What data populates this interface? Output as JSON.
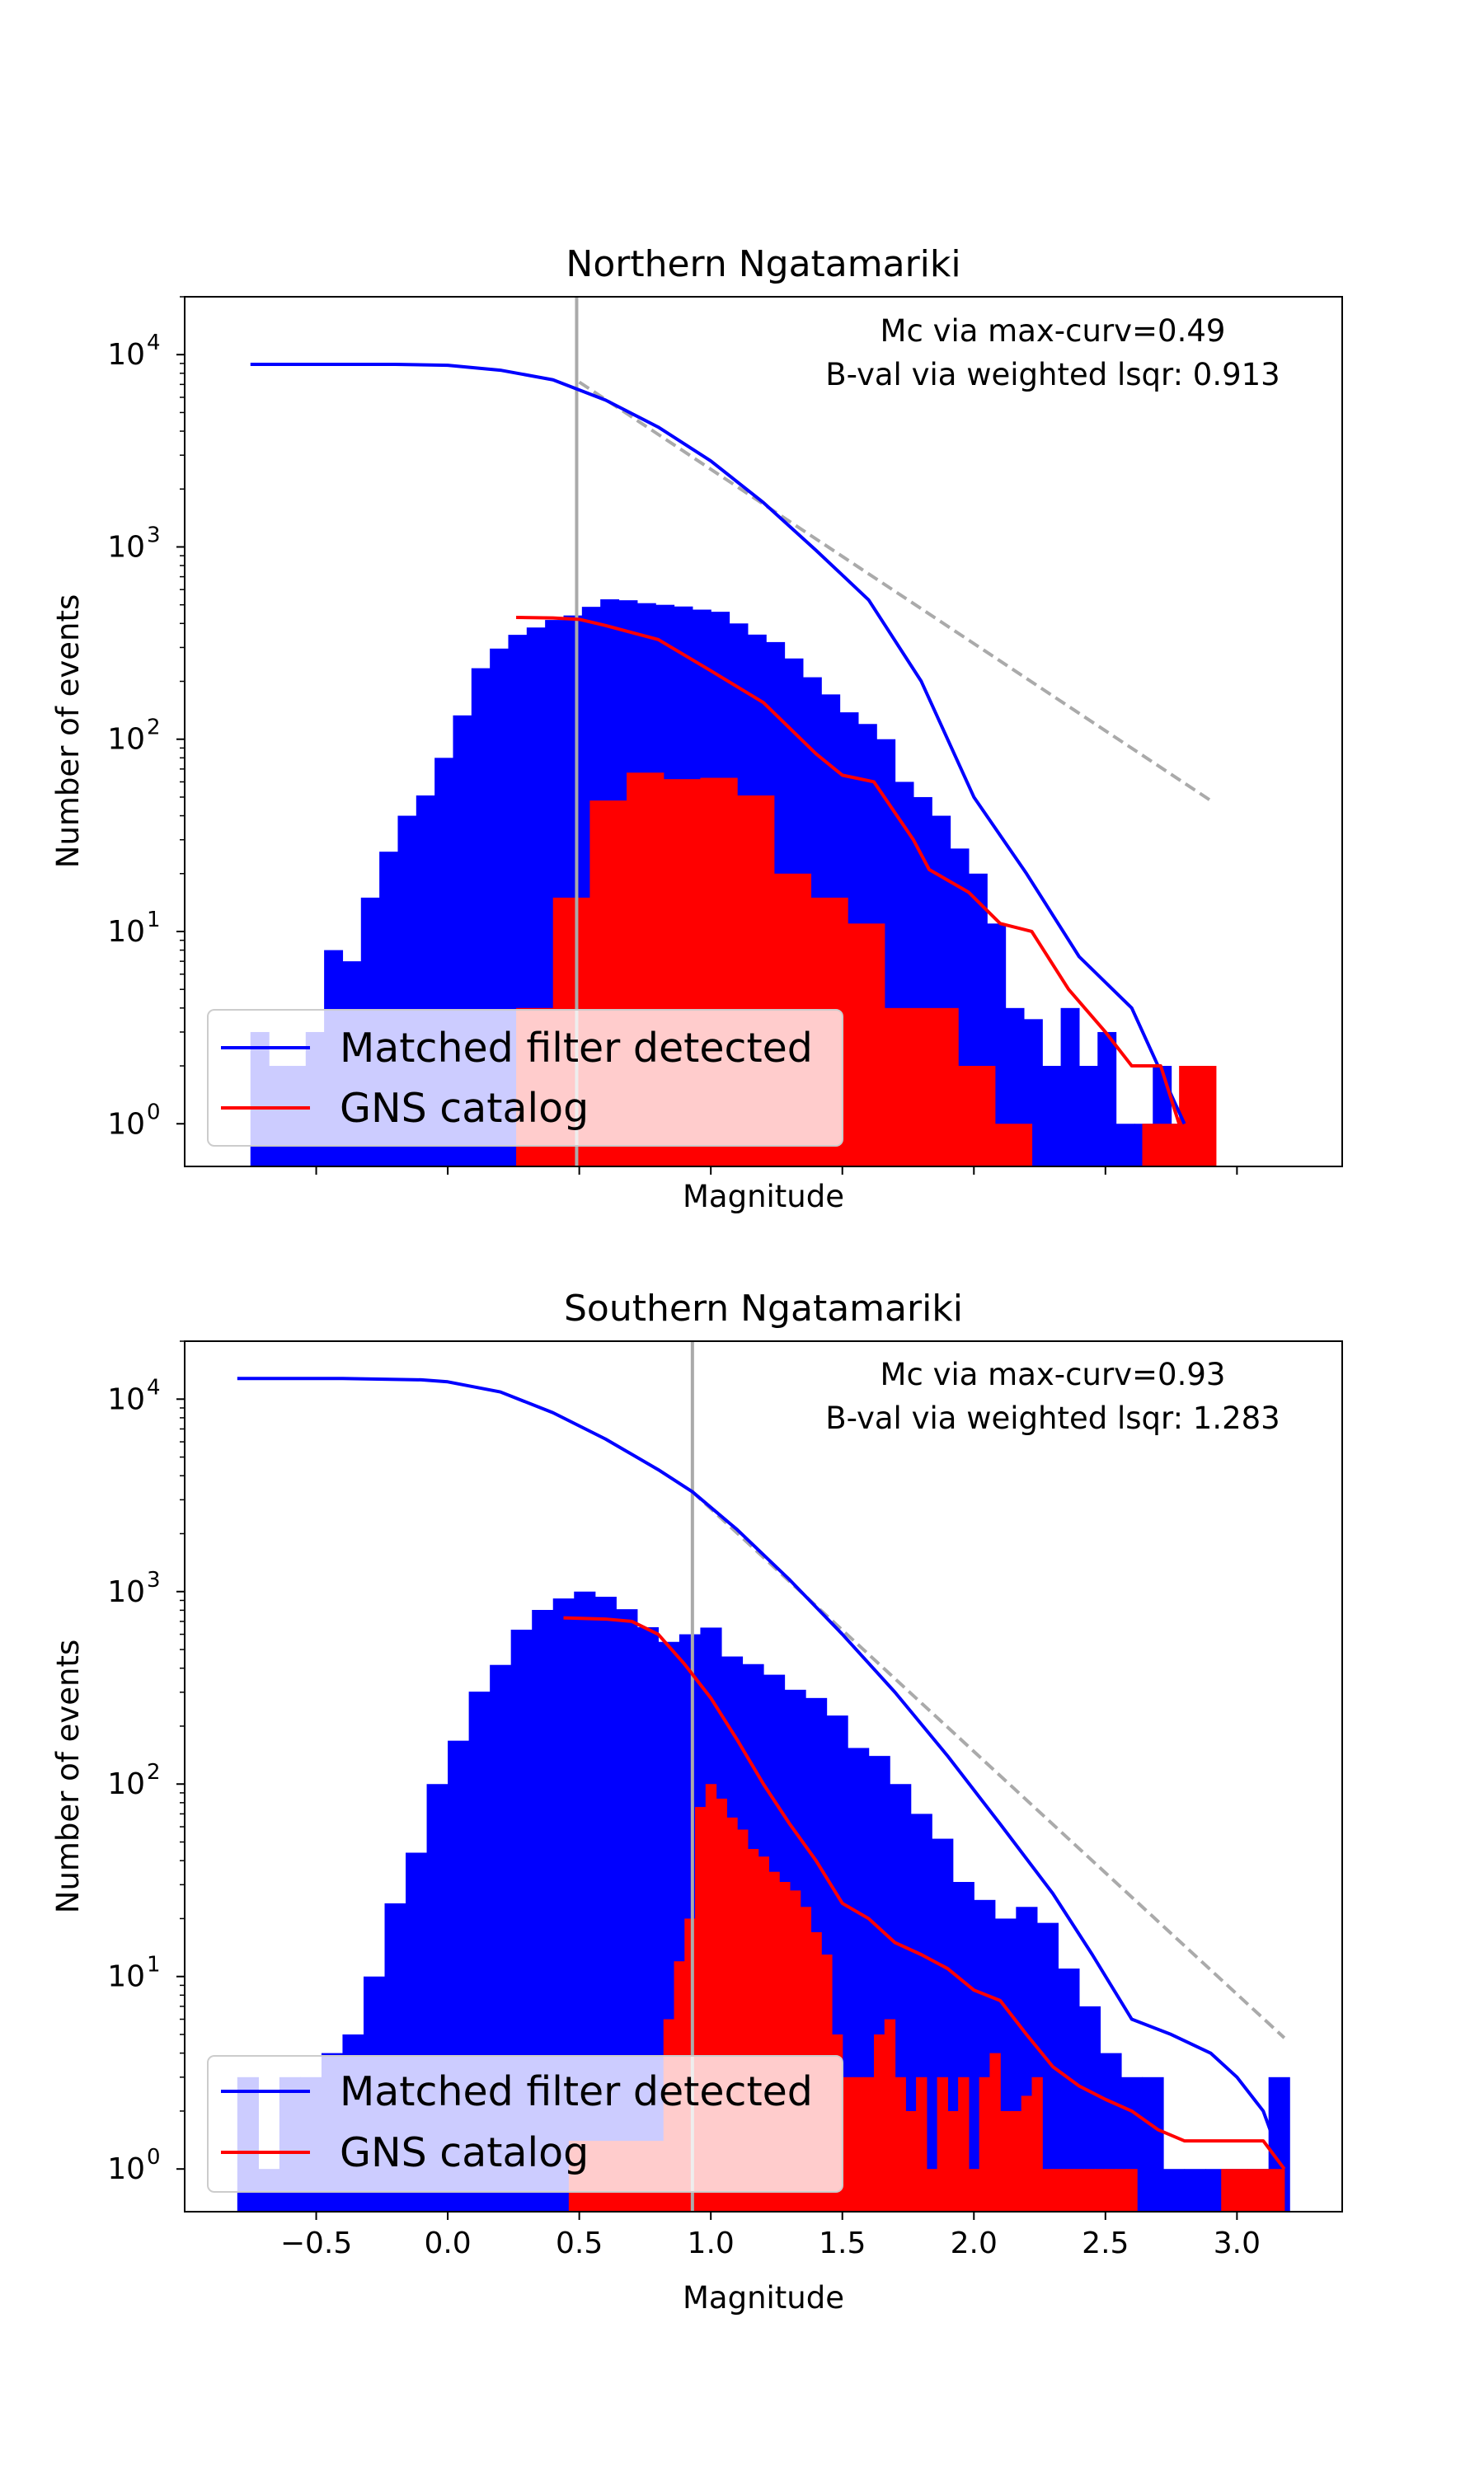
{
  "chart_data": [
    {
      "type": "bar",
      "title": "Northern Ngatamariki",
      "xlabel": "Magnitude",
      "ylabel": "Number of events",
      "yscale": "log",
      "xlim": [
        -1.0,
        3.4
      ],
      "ylim": [
        0.6,
        20000
      ],
      "x_tick_labels_visible": false,
      "y_ticks": [
        {
          "value": 1,
          "base": "10",
          "exp": "0"
        },
        {
          "value": 10,
          "base": "10",
          "exp": "1"
        },
        {
          "value": 100,
          "base": "10",
          "exp": "2"
        },
        {
          "value": 1000,
          "base": "10",
          "exp": "3"
        },
        {
          "value": 10000,
          "base": "10",
          "exp": "4"
        }
      ],
      "annotations": [
        "Mc via max-curv=0.49",
        "B-val via weighted lsqr: 0.913"
      ],
      "mc": 0.49,
      "fit_line": {
        "x": [
          0.5,
          2.9
        ],
        "y": [
          7200,
          48
        ]
      },
      "hist_series": [
        {
          "name": "Matched filter detected",
          "color": "#0000ff",
          "bin_width": 0.07,
          "bins": [
            [
              -0.75,
              3
            ],
            [
              -0.68,
              2
            ],
            [
              -0.61,
              2
            ],
            [
              -0.54,
              3
            ],
            [
              -0.47,
              8
            ],
            [
              -0.4,
              7
            ],
            [
              -0.33,
              15
            ],
            [
              -0.26,
              26
            ],
            [
              -0.19,
              40
            ],
            [
              -0.12,
              51
            ],
            [
              -0.05,
              80
            ],
            [
              0.02,
              133
            ],
            [
              0.09,
              234
            ],
            [
              0.16,
              296
            ],
            [
              0.23,
              349
            ],
            [
              0.3,
              381
            ],
            [
              0.37,
              417
            ],
            [
              0.44,
              440
            ],
            [
              0.51,
              488
            ],
            [
              0.58,
              534
            ],
            [
              0.65,
              528
            ],
            [
              0.72,
              510
            ],
            [
              0.79,
              500
            ],
            [
              0.86,
              490
            ],
            [
              0.93,
              472
            ],
            [
              1.0,
              460
            ],
            [
              1.07,
              400
            ],
            [
              1.14,
              350
            ],
            [
              1.21,
              320
            ],
            [
              1.28,
              263
            ],
            [
              1.35,
              210
            ],
            [
              1.42,
              171
            ],
            [
              1.49,
              138
            ],
            [
              1.56,
              120
            ],
            [
              1.63,
              100
            ],
            [
              1.7,
              60
            ],
            [
              1.77,
              50
            ],
            [
              1.84,
              40
            ],
            [
              1.91,
              27
            ],
            [
              1.98,
              20
            ],
            [
              2.05,
              11
            ],
            [
              2.12,
              4
            ],
            [
              2.19,
              3.5
            ],
            [
              2.26,
              2
            ],
            [
              2.33,
              4
            ],
            [
              2.4,
              2
            ],
            [
              2.47,
              3
            ],
            [
              2.54,
              1
            ],
            [
              2.61,
              1
            ],
            [
              2.68,
              2
            ],
            [
              2.75,
              1
            ],
            [
              2.82,
              2
            ]
          ]
        },
        {
          "name": "GNS catalog",
          "color": "#ff0000",
          "bin_width": 0.14,
          "bins": [
            [
              0.26,
              4
            ],
            [
              0.4,
              15
            ],
            [
              0.54,
              48
            ],
            [
              0.68,
              67
            ],
            [
              0.82,
              62
            ],
            [
              0.96,
              63
            ],
            [
              1.1,
              51
            ],
            [
              1.24,
              20
            ],
            [
              1.38,
              15
            ],
            [
              1.52,
              11
            ],
            [
              1.66,
              4
            ],
            [
              1.8,
              4
            ],
            [
              1.94,
              2
            ],
            [
              2.08,
              1
            ],
            [
              2.22,
              0
            ],
            [
              2.36,
              0
            ],
            [
              2.5,
              0
            ],
            [
              2.64,
              1
            ],
            [
              2.78,
              2
            ]
          ]
        }
      ],
      "cumulative_series": [
        {
          "name": "Matched filter detected",
          "color": "#0000ff",
          "x": [
            -0.75,
            -0.5,
            -0.2,
            0.0,
            0.2,
            0.4,
            0.6,
            0.8,
            1.0,
            1.2,
            1.4,
            1.6,
            1.8,
            2.0,
            2.2,
            2.4,
            2.6,
            2.8
          ],
          "y": [
            8900,
            8900,
            8900,
            8800,
            8300,
            7400,
            5800,
            4200,
            2800,
            1700,
            960,
            530,
            200,
            50,
            20,
            7.4,
            4,
            1
          ]
        },
        {
          "name": "GNS catalog",
          "color": "#ff0000",
          "x": [
            0.26,
            0.4,
            0.5,
            0.6,
            0.8,
            1.0,
            1.2,
            1.4,
            1.5,
            1.62,
            1.77,
            1.83,
            1.98,
            2.1,
            2.22,
            2.36,
            2.5,
            2.6,
            2.71,
            2.78
          ],
          "y": [
            430,
            427,
            420,
            390,
            330,
            227,
            155,
            84,
            65,
            60,
            30,
            21,
            16,
            11,
            10,
            5,
            3,
            2,
            2,
            1
          ]
        }
      ]
    },
    {
      "type": "bar",
      "title": "Southern Ngatamariki",
      "xlabel": "Magnitude",
      "ylabel": "Number of events",
      "yscale": "log",
      "xlim": [
        -1.0,
        3.4
      ],
      "ylim": [
        0.6,
        20000
      ],
      "x_ticks": [
        "−0.5",
        "0.0",
        "0.5",
        "1.0",
        "1.5",
        "2.0",
        "2.5",
        "3.0"
      ],
      "y_ticks": [
        {
          "value": 1,
          "base": "10",
          "exp": "0"
        },
        {
          "value": 10,
          "base": "10",
          "exp": "1"
        },
        {
          "value": 100,
          "base": "10",
          "exp": "2"
        },
        {
          "value": 1000,
          "base": "10",
          "exp": "3"
        },
        {
          "value": 10000,
          "base": "10",
          "exp": "4"
        }
      ],
      "annotations": [
        "Mc via max-curv=0.93",
        "B-val via weighted lsqr: 1.283"
      ],
      "mc": 0.93,
      "fit_line": {
        "x": [
          0.93,
          3.18
        ],
        "y": [
          3300,
          4.8
        ]
      },
      "hist_series": [
        {
          "name": "Matched filter detected",
          "color": "#0000ff",
          "bin_width": 0.08,
          "bins": [
            [
              -0.8,
              3
            ],
            [
              -0.72,
              1
            ],
            [
              -0.64,
              3
            ],
            [
              -0.56,
              3
            ],
            [
              -0.48,
              4
            ],
            [
              -0.4,
              5
            ],
            [
              -0.32,
              10
            ],
            [
              -0.24,
              24
            ],
            [
              -0.16,
              44
            ],
            [
              -0.08,
              100
            ],
            [
              0.0,
              168
            ],
            [
              0.08,
              302
            ],
            [
              0.16,
              416
            ],
            [
              0.24,
              634
            ],
            [
              0.32,
              803
            ],
            [
              0.4,
              921
            ],
            [
              0.48,
              1000
            ],
            [
              0.56,
              940
            ],
            [
              0.64,
              810
            ],
            [
              0.72,
              653
            ],
            [
              0.8,
              548
            ],
            [
              0.88,
              600
            ],
            [
              0.96,
              650
            ],
            [
              1.04,
              460
            ],
            [
              1.12,
              420
            ],
            [
              1.2,
              370
            ],
            [
              1.28,
              309
            ],
            [
              1.36,
              280
            ],
            [
              1.44,
              227
            ],
            [
              1.52,
              154
            ],
            [
              1.6,
              140
            ],
            [
              1.68,
              100
            ],
            [
              1.76,
              70
            ],
            [
              1.84,
              52
            ],
            [
              1.92,
              31
            ],
            [
              2.0,
              25
            ],
            [
              2.08,
              20
            ],
            [
              2.16,
              23
            ],
            [
              2.24,
              19
            ],
            [
              2.32,
              11
            ],
            [
              2.4,
              7
            ],
            [
              2.48,
              4
            ],
            [
              2.56,
              3
            ],
            [
              2.64,
              3
            ],
            [
              2.72,
              1
            ],
            [
              2.8,
              1
            ],
            [
              2.88,
              1
            ],
            [
              2.96,
              1
            ],
            [
              3.04,
              1
            ],
            [
              3.12,
              3
            ]
          ]
        },
        {
          "name": "GNS catalog",
          "color": "#ff0000",
          "bin_width": 0.04,
          "bins": [
            [
              0.46,
              1.4
            ],
            [
              0.5,
              1.4
            ],
            [
              0.54,
              1.4
            ],
            [
              0.58,
              1.4
            ],
            [
              0.62,
              1.4
            ],
            [
              0.66,
              1.4
            ],
            [
              0.7,
              1.4
            ],
            [
              0.74,
              1.4
            ],
            [
              0.78,
              1.4
            ],
            [
              0.82,
              6
            ],
            [
              0.86,
              12
            ],
            [
              0.9,
              20
            ],
            [
              0.94,
              76
            ],
            [
              0.98,
              100
            ],
            [
              1.02,
              84
            ],
            [
              1.06,
              67
            ],
            [
              1.1,
              58
            ],
            [
              1.14,
              46
            ],
            [
              1.18,
              42
            ],
            [
              1.22,
              35
            ],
            [
              1.26,
              31
            ],
            [
              1.3,
              28
            ],
            [
              1.34,
              23
            ],
            [
              1.38,
              17
            ],
            [
              1.42,
              13
            ],
            [
              1.46,
              5
            ],
            [
              1.5,
              3
            ],
            [
              1.54,
              3
            ],
            [
              1.58,
              3
            ],
            [
              1.62,
              5
            ],
            [
              1.66,
              6
            ],
            [
              1.7,
              3
            ],
            [
              1.74,
              2
            ],
            [
              1.78,
              3
            ],
            [
              1.82,
              1
            ],
            [
              1.86,
              3
            ],
            [
              1.9,
              2
            ],
            [
              1.94,
              3
            ],
            [
              1.98,
              1
            ],
            [
              2.02,
              3
            ],
            [
              2.06,
              4
            ],
            [
              2.1,
              2
            ],
            [
              2.14,
              2
            ],
            [
              2.18,
              2.4
            ],
            [
              2.22,
              3
            ],
            [
              2.26,
              1
            ],
            [
              2.3,
              1
            ],
            [
              2.34,
              1
            ],
            [
              2.38,
              1
            ],
            [
              2.42,
              1
            ],
            [
              2.46,
              1
            ],
            [
              2.5,
              1
            ],
            [
              2.54,
              1
            ],
            [
              2.58,
              1
            ],
            [
              2.62,
              0
            ],
            [
              2.66,
              0
            ],
            [
              2.7,
              0
            ],
            [
              2.74,
              0
            ],
            [
              2.78,
              0
            ],
            [
              2.82,
              0
            ],
            [
              2.86,
              0
            ],
            [
              2.9,
              0
            ],
            [
              2.94,
              1
            ],
            [
              2.98,
              1
            ],
            [
              3.02,
              1
            ],
            [
              3.06,
              1
            ],
            [
              3.1,
              1
            ],
            [
              3.14,
              1
            ]
          ]
        }
      ],
      "cumulative_series": [
        {
          "name": "Matched filter detected",
          "color": "#0000ff",
          "x": [
            -0.8,
            -0.4,
            -0.1,
            0.0,
            0.2,
            0.4,
            0.6,
            0.8,
            0.93,
            1.1,
            1.3,
            1.5,
            1.7,
            1.9,
            2.1,
            2.3,
            2.45,
            2.6,
            2.75,
            2.9,
            3.0,
            3.1,
            3.18
          ],
          "y": [
            12800,
            12800,
            12600,
            12300,
            10900,
            8500,
            6200,
            4300,
            3300,
            2100,
            1150,
            600,
            300,
            140,
            62,
            27,
            13,
            6,
            5,
            4,
            3,
            2,
            1
          ]
        },
        {
          "name": "GNS catalog",
          "color": "#ff0000",
          "x": [
            0.44,
            0.6,
            0.7,
            0.8,
            0.9,
            1.0,
            1.1,
            1.2,
            1.3,
            1.4,
            1.5,
            1.6,
            1.7,
            1.8,
            1.9,
            2.0,
            2.1,
            2.2,
            2.3,
            2.4,
            2.5,
            2.6,
            2.7,
            2.8,
            3.0,
            3.1,
            3.18
          ],
          "y": [
            730,
            720,
            700,
            600,
            420,
            280,
            170,
            100,
            62,
            40,
            24,
            20,
            15,
            13,
            11,
            8.5,
            7.5,
            5,
            3.4,
            2.7,
            2.3,
            2,
            1.6,
            1.4,
            1.4,
            1.4,
            1
          ]
        }
      ]
    }
  ],
  "legend": {
    "mf_label": "Matched filter detected",
    "gns_label": "GNS catalog"
  }
}
